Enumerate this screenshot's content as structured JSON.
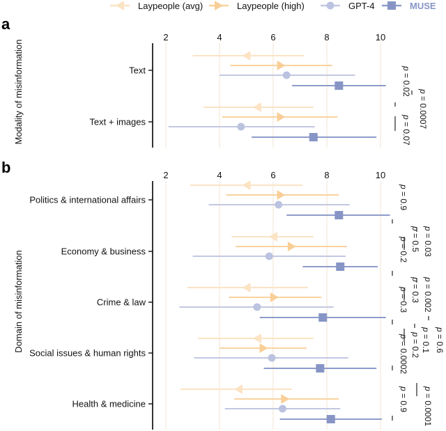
{
  "legend": {
    "items": [
      {
        "label": "Laypeople (avg)",
        "marker": "arrow-left",
        "color": "#fbe3c4"
      },
      {
        "label": "Laypeople (high)",
        "marker": "arrow-right",
        "color": "#f9cf98"
      },
      {
        "label": "GPT-4",
        "marker": "circle",
        "color": "#bcc3e0"
      },
      {
        "label": "MUSE",
        "marker": "square",
        "color": "#8795c6",
        "label_color": "#8795c6",
        "bold": true
      }
    ]
  },
  "chart_data": [
    {
      "panel_label": "a",
      "type": "scatter",
      "subtype": "forest-plot",
      "ylabel": "Modality of misinformation",
      "xlabel": "",
      "xlim": [
        2,
        10
      ],
      "xticks": [
        "2",
        "4",
        "6",
        "8",
        "10"
      ],
      "grid": "vertical",
      "categories": [
        "Text",
        "Text + images"
      ],
      "series": [
        {
          "name": "Laypeople (avg)",
          "points": [
            {
              "mean": 5.0,
              "low": 3.0,
              "high": 7.15
            },
            {
              "mean": 5.4,
              "low": 3.4,
              "high": 7.5
            }
          ]
        },
        {
          "name": "Laypeople (high)",
          "points": [
            {
              "mean": 6.3,
              "low": 4.4,
              "high": 8.2
            },
            {
              "mean": 6.3,
              "low": 4.1,
              "high": 8.4
            }
          ]
        },
        {
          "name": "GPT-4",
          "points": [
            {
              "mean": 6.5,
              "low": 4.0,
              "high": 9.05
            },
            {
              "mean": 4.8,
              "low": 2.1,
              "high": 7.55
            }
          ]
        },
        {
          "name": "MUSE",
          "points": [
            {
              "mean": 8.45,
              "low": 6.7,
              "high": 10.2
            },
            {
              "mean": 7.5,
              "low": 5.2,
              "high": 9.85
            }
          ]
        }
      ],
      "annotations": [
        {
          "text": "p = 0.02",
          "category": "Text",
          "compares": [
            "GPT-4",
            "MUSE"
          ]
        },
        {
          "text": "p = 0.07",
          "category": "Text + images",
          "compares": [
            "GPT-4",
            "MUSE"
          ]
        },
        {
          "text": "p = 0.0007",
          "category": "Text vs Text + images",
          "compares": [
            "MUSE",
            "MUSE"
          ]
        }
      ]
    },
    {
      "panel_label": "b",
      "type": "scatter",
      "subtype": "forest-plot",
      "ylabel": "Domain of misinformation",
      "xlabel": "",
      "xlim": [
        2,
        10
      ],
      "xticks": [
        "2",
        "4",
        "6",
        "8",
        "10"
      ],
      "grid": "vertical",
      "categories": [
        "Politics & international affairs",
        "Economy & business",
        "Crime & law",
        "Social issues & human rights",
        "Health & medicine"
      ],
      "series": [
        {
          "name": "Laypeople (avg)",
          "points": [
            {
              "mean": 5.0,
              "low": 2.9,
              "high": 7.1
            },
            {
              "mean": 6.0,
              "low": 4.45,
              "high": 7.5
            },
            {
              "mean": 5.0,
              "low": 2.8,
              "high": 7.3
            },
            {
              "mean": 5.4,
              "low": 3.2,
              "high": 7.5
            },
            {
              "mean": 4.7,
              "low": 2.55,
              "high": 6.7
            }
          ]
        },
        {
          "name": "Laypeople (high)",
          "points": [
            {
              "mean": 6.3,
              "low": 4.25,
              "high": 8.45
            },
            {
              "mean": 6.7,
              "low": 4.6,
              "high": 8.75
            },
            {
              "mean": 6.05,
              "low": 4.35,
              "high": 7.8
            },
            {
              "mean": 5.65,
              "low": 4.0,
              "high": 7.25
            },
            {
              "mean": 6.45,
              "low": 4.55,
              "high": 8.45
            }
          ]
        },
        {
          "name": "GPT-4",
          "points": [
            {
              "mean": 6.2,
              "low": 3.6,
              "high": 8.85
            },
            {
              "mean": 5.85,
              "low": 3.0,
              "high": 8.7
            },
            {
              "mean": 5.4,
              "low": 2.5,
              "high": 8.25
            },
            {
              "mean": 5.95,
              "low": 3.05,
              "high": 8.8
            },
            {
              "mean": 6.35,
              "low": 4.2,
              "high": 8.5
            }
          ]
        },
        {
          "name": "MUSE",
          "points": [
            {
              "mean": 8.45,
              "low": 6.5,
              "high": 10.35
            },
            {
              "mean": 8.5,
              "low": 7.1,
              "high": 9.9
            },
            {
              "mean": 7.85,
              "low": 5.5,
              "high": 10.2
            },
            {
              "mean": 7.75,
              "low": 5.65,
              "high": 9.85
            },
            {
              "mean": 8.15,
              "low": 6.25,
              "high": 10.05
            }
          ]
        }
      ],
      "annotations": [
        {
          "text": "p = 0.9",
          "category": "Politics & international affairs",
          "compares": [
            "GPT-4",
            "MUSE"
          ]
        },
        {
          "text": "p = 0.2",
          "category": "Economy & business",
          "compares": [
            "GPT-4",
            "MUSE"
          ]
        },
        {
          "text": "p = 0.5",
          "category": "Politics vs Economy",
          "compares": [
            "MUSE",
            "MUSE"
          ]
        },
        {
          "text": "p = 0.03",
          "category": "Politics vs Economy",
          "compares": [
            "MUSE",
            "MUSE"
          ]
        },
        {
          "text": "p = 0.3",
          "category": "Crime & law",
          "compares": [
            "GPT-4",
            "MUSE"
          ]
        },
        {
          "text": "p = 0.3",
          "category": "Economy vs Crime",
          "compares": [
            "MUSE",
            "MUSE"
          ]
        },
        {
          "text": "p = 0.002",
          "category": "Economy vs Crime",
          "compares": [
            "MUSE",
            "MUSE"
          ]
        },
        {
          "text": "p = 0.0002",
          "category": "Social issues & human rights",
          "compares": [
            "GPT-4",
            "MUSE"
          ]
        },
        {
          "text": "p = 0.2",
          "category": "Crime vs Social",
          "compares": [
            "MUSE",
            "MUSE"
          ]
        },
        {
          "text": "p = 0.1",
          "category": "Crime vs Social",
          "compares": [
            "MUSE",
            "MUSE"
          ]
        },
        {
          "text": "p = 0.6",
          "category": "Crime vs Social",
          "compares": [
            "MUSE",
            "MUSE"
          ]
        },
        {
          "text": "p = 0.9",
          "category": "Health & medicine",
          "compares": [
            "GPT-4",
            "MUSE"
          ]
        },
        {
          "text": "p = 0.0001",
          "category": "Social vs Health",
          "compares": [
            "MUSE",
            "MUSE"
          ]
        }
      ]
    }
  ]
}
